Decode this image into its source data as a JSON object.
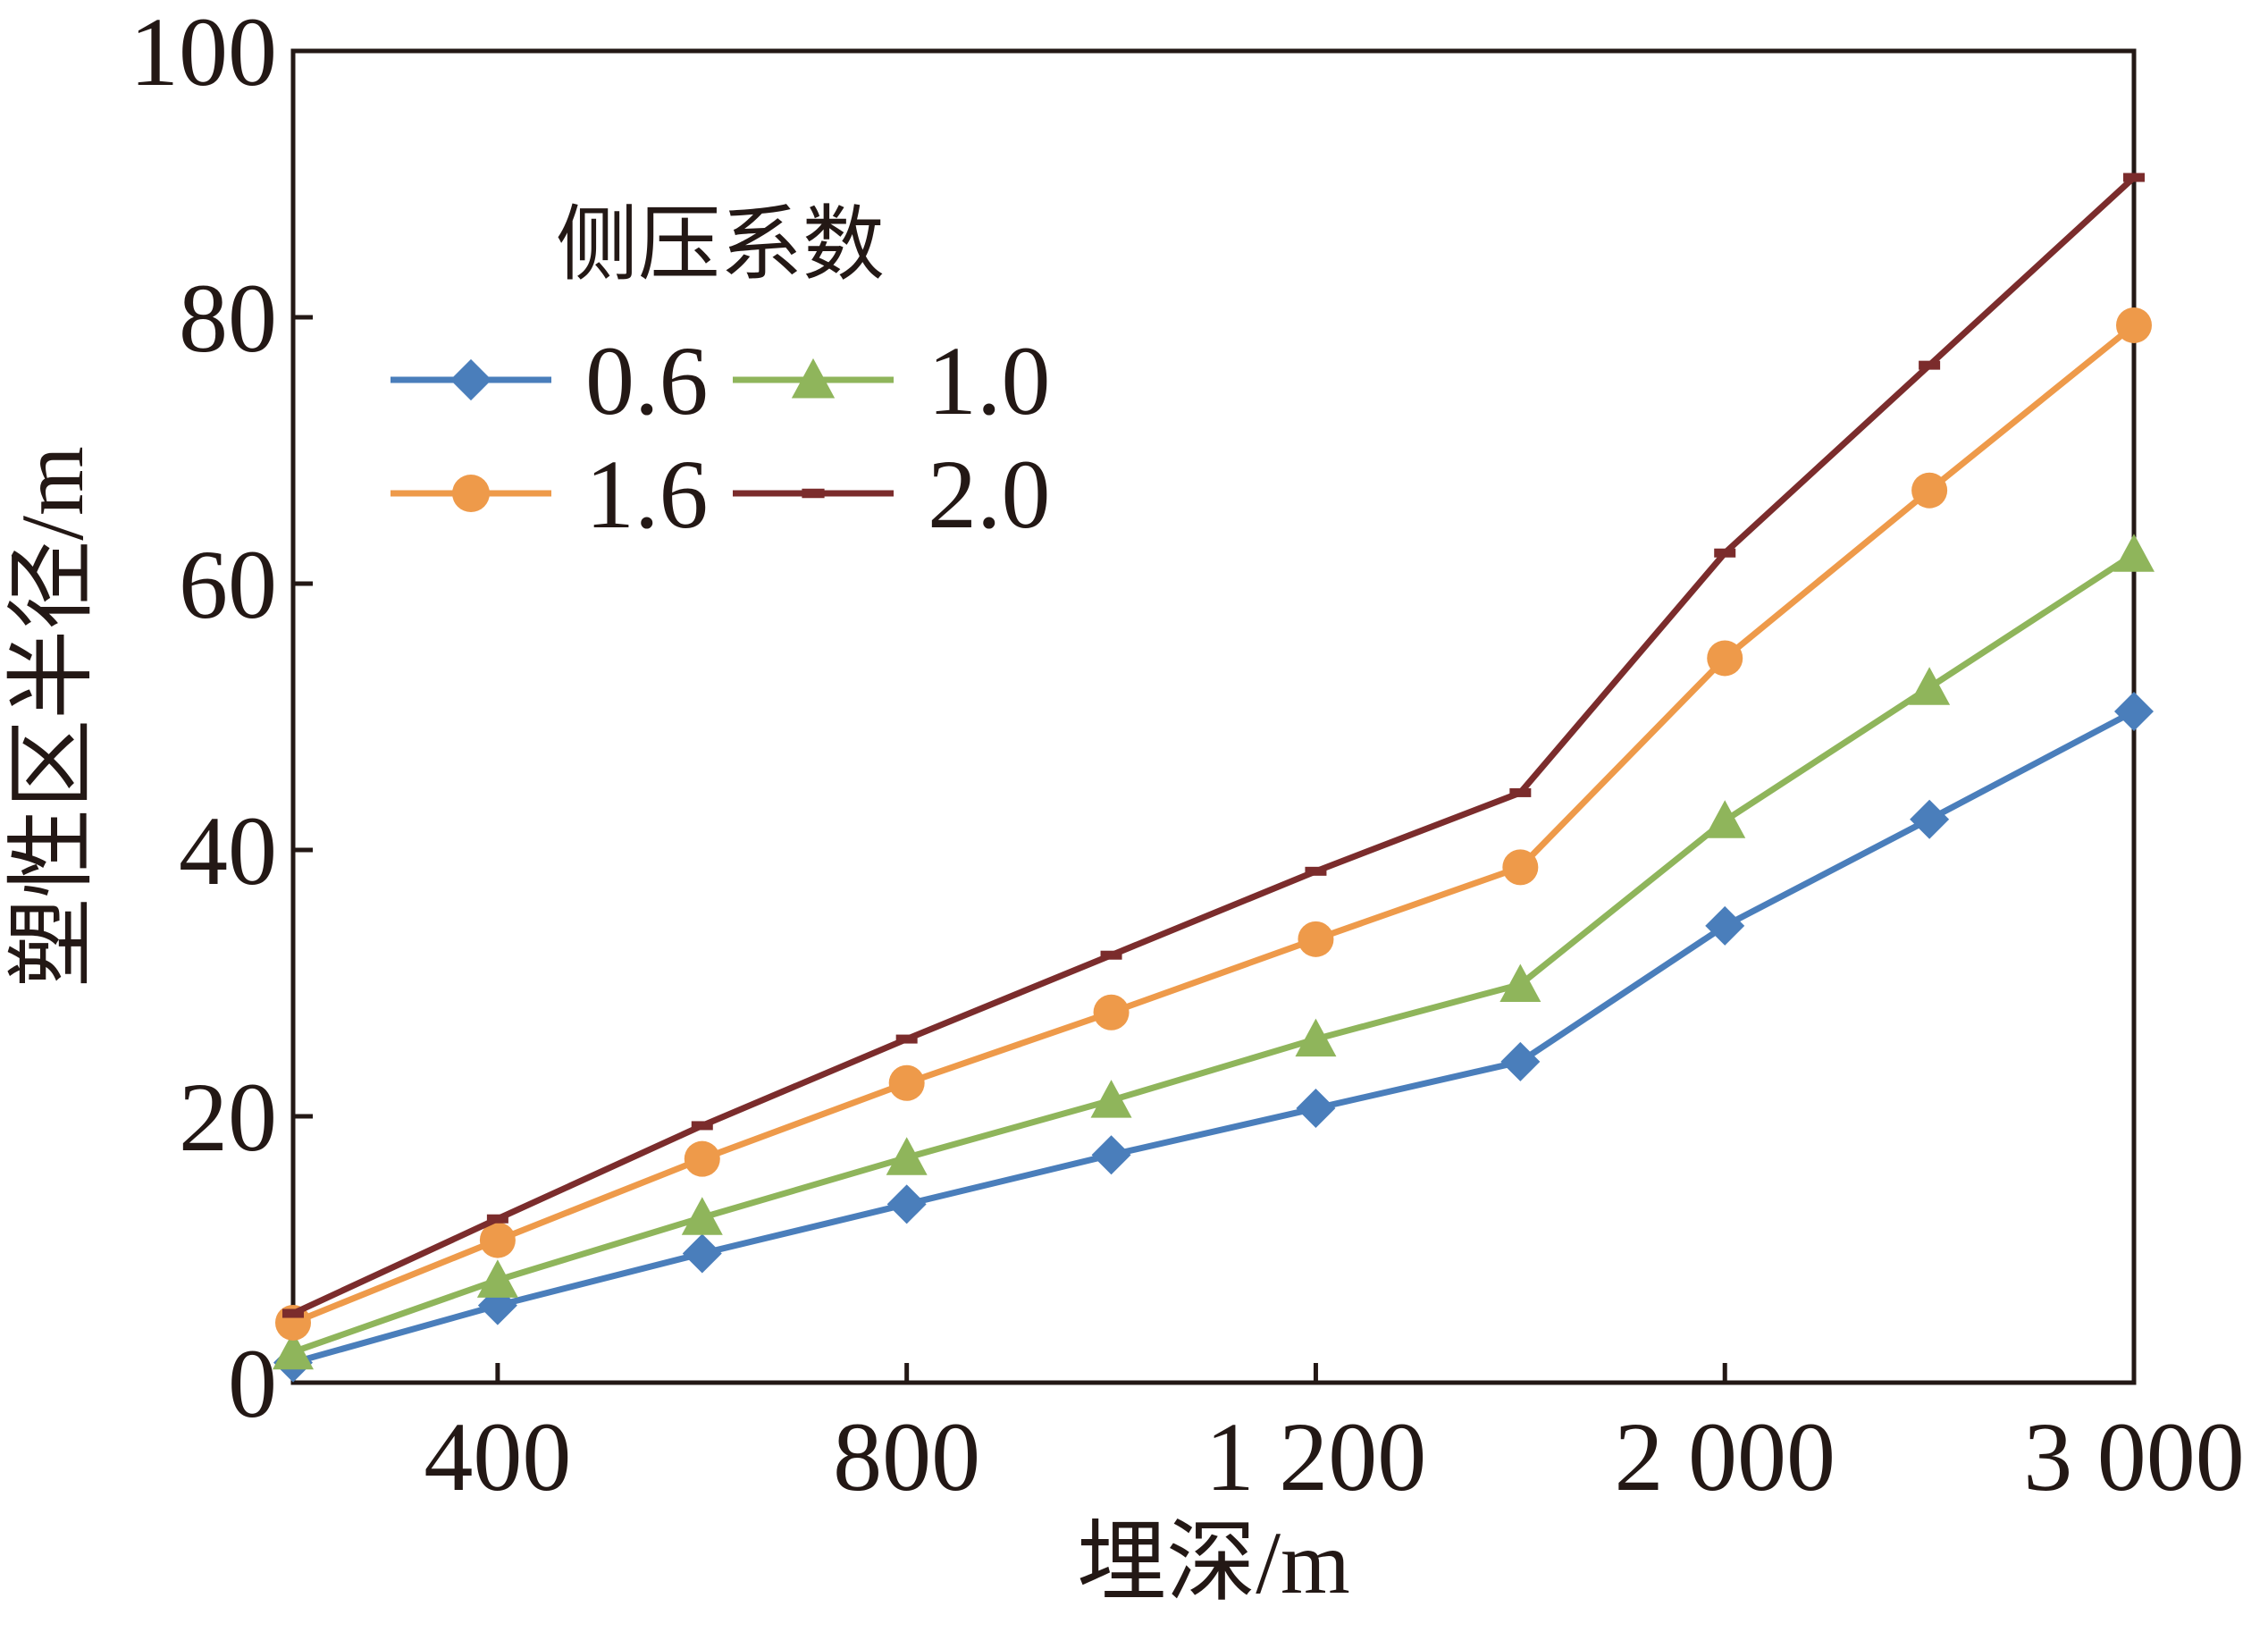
{
  "chart_data": {
    "type": "line",
    "xlabel": "埋深/m",
    "ylabel": "塑性区半径/m",
    "ylim": [
      0,
      100
    ],
    "yticks": [
      "0",
      "20",
      "40",
      "60",
      "80",
      "100"
    ],
    "x_labels": [
      "",
      "400",
      "",
      "800",
      "",
      "1 200",
      "",
      "2 000",
      "",
      "3 000"
    ],
    "grid": false,
    "legend": {
      "title": "侧压系数",
      "placement": "top-left"
    },
    "series": [
      {
        "name": "0.6",
        "color": "#4a7ebb",
        "marker": "diamond",
        "values": [
          1.5,
          5.8,
          9.7,
          13.4,
          17.1,
          20.6,
          24.1,
          34.3,
          42.3,
          50.4
        ]
      },
      {
        "name": "1.0",
        "color": "#8fb55b",
        "marker": "triangle",
        "values": [
          2.3,
          7.7,
          12.4,
          16.9,
          21.2,
          25.8,
          29.9,
          42.2,
          52.2,
          62.2
        ]
      },
      {
        "name": "1.6",
        "color": "#ee9a4a",
        "marker": "circle",
        "values": [
          4.5,
          10.7,
          16.8,
          22.5,
          27.8,
          33.3,
          38.7,
          54.4,
          67.0,
          79.4
        ]
      },
      {
        "name": "2.0",
        "color": "#7b2c2c",
        "marker": "dash",
        "values": [
          5.2,
          12.3,
          19.3,
          25.8,
          32.1,
          38.4,
          44.3,
          62.3,
          76.4,
          90.5
        ]
      }
    ]
  }
}
